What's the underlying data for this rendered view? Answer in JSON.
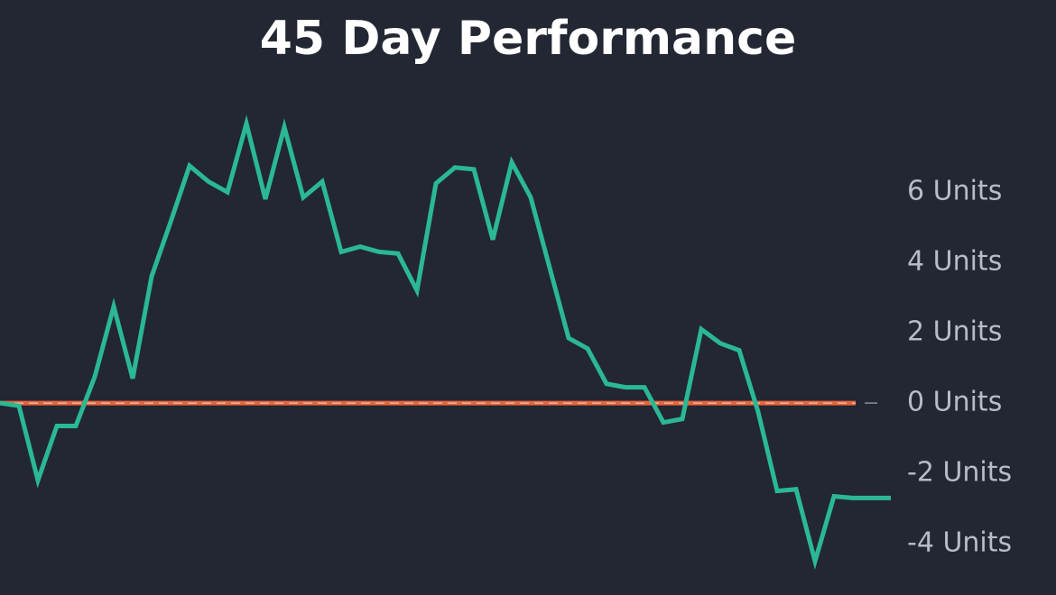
{
  "chart_data": {
    "type": "line",
    "title": "45 Day Performance",
    "values": [
      0,
      -0.08,
      -2.2,
      -0.65,
      -0.65,
      0.75,
      2.75,
      0.7,
      3.6,
      5.15,
      6.75,
      6.3,
      6.0,
      7.95,
      5.8,
      7.85,
      5.85,
      6.3,
      4.3,
      4.45,
      4.3,
      4.25,
      3.2,
      6.25,
      6.7,
      6.65,
      4.65,
      6.85,
      5.85,
      3.85,
      1.85,
      1.55,
      0.55,
      0.45,
      0.45,
      -0.55,
      -0.45,
      2.1,
      1.7,
      1.5,
      -0.25,
      -2.5,
      -2.45,
      -4.5,
      -2.65,
      -2.7,
      -2.7,
      -2.7
    ],
    "color": "#2bb894",
    "baseline": 0,
    "baseline_color": "#e8643c",
    "ylim": [
      -5.5,
      8.9
    ],
    "yticks": [
      {
        "value": -4,
        "label": "-4 Units"
      },
      {
        "value": -2,
        "label": "-2 Units"
      },
      {
        "value": 0,
        "label": "0 Units"
      },
      {
        "value": 2,
        "label": "2 Units"
      },
      {
        "value": 4,
        "label": "4 Units"
      },
      {
        "value": 6,
        "label": "6 Units"
      }
    ],
    "grid": false
  }
}
